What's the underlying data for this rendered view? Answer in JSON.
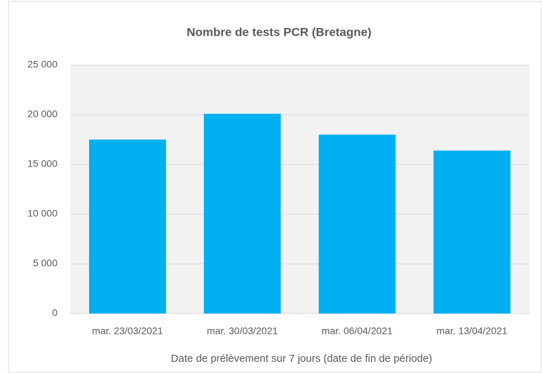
{
  "chart_data": {
    "type": "bar",
    "title": "Nombre de tests PCR (Bretagne)",
    "x_label": "Date de prélèvement sur 7 jours (date de fin de période)",
    "categories": [
      "mar. 23/03/2021",
      "mar. 30/03/2021",
      "mar. 06/04/2021",
      "mar. 13/04/2021"
    ],
    "values": [
      17500,
      20100,
      18000,
      16400
    ],
    "color": "#00b0f0",
    "ylim": [
      0,
      25000
    ],
    "yticks": [
      0,
      {
        "value": 5000,
        "label": "5 000"
      },
      {
        "value": 10000,
        "label": "10 000"
      },
      {
        "value": 15000,
        "label": "15 000"
      },
      {
        "value": 20000,
        "label": "20 000"
      },
      {
        "value": 25000,
        "label": "25 000"
      }
    ],
    "grid": true
  }
}
